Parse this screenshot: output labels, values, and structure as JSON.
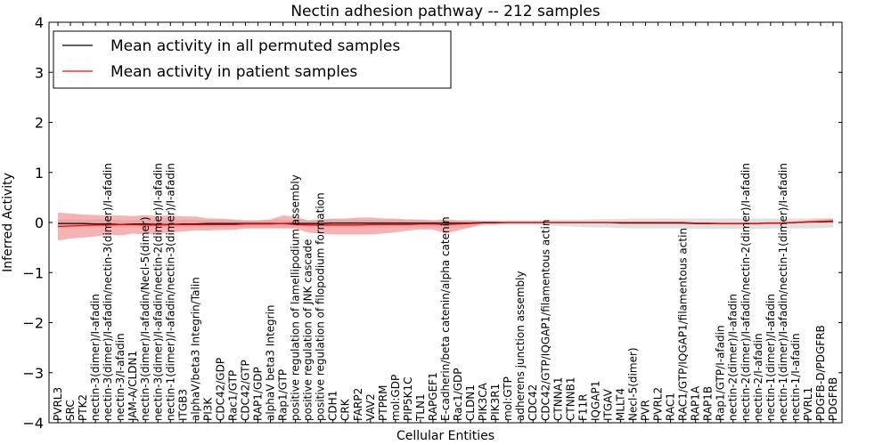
{
  "chart_data": {
    "type": "line",
    "title": "Nectin adhesion pathway -- 212 samples",
    "xlabel": "Cellular Entities",
    "ylabel": "Inferred Activity",
    "ylim": [
      -4,
      4
    ],
    "yticks": [
      "−4",
      "−3",
      "−2",
      "−1",
      "0",
      "1",
      "2",
      "3",
      "4"
    ],
    "grid": false,
    "legend_position": "top-left",
    "categories": [
      "PVRL3",
      "SRC",
      "PTK2",
      "nectin-3(dimer)/I-afadin",
      "nectin-3(dimer)/I-afadin/nectin-3(dimer)/I-afadin",
      "nectin-3/I-afadin",
      "JAM-A/CLDN1",
      "nectin-3(dimer)/I-afadin/Necl-5(dimer)",
      "nectin-3(dimer)/I-afadin/nectin-2(dimer)/I-afadin",
      "nectin-1(dimer)/I-afadin/nectin-3(dimer)/I-afadin",
      "ITGB3",
      "alphaV/beta3 Integrin/Talin",
      "PI3K",
      "CDC42/GDP",
      "Rac1/GTP",
      "CDC42/GTP",
      "RAP1/GDP",
      "alphaV beta3 Integrin",
      "Rap1/GTP",
      "positive regulation of lamellipodium assembly",
      "positive regulation of JNK cascade",
      "positive regulation of filopodium formation",
      "CDH1",
      "CRK",
      "FARP2",
      "VAV2",
      "PTPRM",
      "mol:GDP",
      "PIP5K1C",
      "TLN1",
      "RAPGEF1",
      "E-cadherin/beta catenin/alpha catenin",
      "Rac1/GDP",
      "CLDN1",
      "PIK3CA",
      "PIK3R1",
      "mol:GTP",
      "adherens junction assembly",
      "CDC42",
      "CDC42/GTP/IQGAP1/filamentous actin",
      "CTNNA1",
      "CTNNB1",
      "F11R",
      "IQGAP1",
      "ITGAV",
      "MLLT4",
      "Necl-5(dimer)",
      "PVR",
      "PVRL2",
      "RAC1",
      "RAC1/GTP/IQGAP1/filamentous actin",
      "RAP1A",
      "RAP1B",
      "Rap1/GTP/I-afadin",
      "nectin-2(dimer)/I-afadin",
      "nectin-2(dimer)/I-afadin/nectin-2(dimer)/I-afadin",
      "nectin-2/I-afadin",
      "nectin-1(dimer)/I-afadin",
      "nectin-1(dimer)/I-afadin/nectin-1(dimer)/I-afadin",
      "nectin-1/I-afadin",
      "PVRL1",
      "PDGFB-D/PDGFRB",
      "PDGFRB"
    ],
    "series": [
      {
        "name": "Mean activity in all permuted samples",
        "color": "#000000",
        "values": [
          -0.02,
          -0.02,
          -0.02,
          -0.03,
          -0.03,
          -0.04,
          -0.03,
          -0.03,
          -0.04,
          -0.04,
          -0.03,
          -0.03,
          -0.02,
          -0.02,
          -0.02,
          -0.02,
          -0.02,
          -0.02,
          -0.02,
          -0.02,
          -0.02,
          -0.02,
          -0.01,
          -0.01,
          -0.01,
          -0.01,
          -0.01,
          -0.01,
          -0.01,
          -0.01,
          -0.01,
          -0.01,
          -0.01,
          -0.01,
          0.0,
          0.0,
          0.0,
          0.0,
          0.0,
          0.0,
          0.0,
          0.0,
          0.0,
          0.0,
          0.0,
          -0.01,
          -0.01,
          -0.01,
          -0.01,
          -0.01,
          -0.01,
          -0.02,
          -0.02,
          -0.02,
          -0.02,
          -0.02,
          -0.02,
          -0.01,
          -0.01,
          0.0,
          0.01,
          0.01,
          0.02
        ]
      },
      {
        "name": "Mean activity in patient samples",
        "color": "#ff0000",
        "values": [
          -0.08,
          -0.07,
          -0.06,
          -0.05,
          -0.05,
          -0.04,
          -0.04,
          -0.05,
          -0.05,
          -0.04,
          -0.04,
          -0.04,
          -0.04,
          -0.04,
          -0.04,
          -0.03,
          -0.03,
          -0.03,
          -0.02,
          -0.04,
          -0.05,
          -0.05,
          -0.05,
          -0.05,
          -0.05,
          -0.04,
          -0.04,
          -0.04,
          -0.04,
          -0.03,
          -0.03,
          -0.04,
          -0.03,
          -0.02,
          -0.01,
          -0.01,
          0.0,
          0.0,
          0.0,
          0.0,
          0.0,
          0.0,
          0.0,
          0.0,
          0.0,
          0.0,
          0.0,
          0.0,
          0.0,
          0.0,
          0.0,
          -0.01,
          -0.01,
          -0.02,
          -0.02,
          -0.02,
          -0.02,
          -0.01,
          -0.01,
          0.0,
          0.01,
          0.02,
          0.03
        ]
      }
    ],
    "bands": [
      {
        "name": "permuted samples spread",
        "color": "#bbbbbb",
        "lower": [
          -0.1,
          -0.1,
          -0.1,
          -0.1,
          -0.1,
          -0.1,
          -0.1,
          -0.1,
          -0.1,
          -0.1,
          -0.1,
          -0.1,
          -0.1,
          -0.1,
          -0.1,
          -0.1,
          -0.1,
          -0.1,
          -0.1,
          -0.1,
          -0.1,
          -0.1,
          -0.1,
          -0.1,
          -0.1,
          -0.1,
          -0.1,
          -0.1,
          -0.1,
          -0.1,
          -0.1,
          -0.1,
          -0.1,
          -0.1,
          -0.06,
          -0.05,
          -0.05,
          -0.05,
          -0.05,
          -0.06,
          -0.07,
          -0.08,
          -0.09,
          -0.1,
          -0.1,
          -0.11,
          -0.12,
          -0.12,
          -0.12,
          -0.12,
          -0.12,
          -0.13,
          -0.13,
          -0.13,
          -0.13,
          -0.13,
          -0.13,
          -0.12,
          -0.12,
          -0.12,
          -0.12,
          -0.11,
          -0.1
        ],
        "upper": [
          0.06,
          0.06,
          0.06,
          0.06,
          0.06,
          0.05,
          0.05,
          0.05,
          0.05,
          0.05,
          0.05,
          0.05,
          0.05,
          0.05,
          0.05,
          0.05,
          0.05,
          0.05,
          0.05,
          0.05,
          0.05,
          0.05,
          0.05,
          0.05,
          0.05,
          0.05,
          0.05,
          0.05,
          0.05,
          0.05,
          0.05,
          0.05,
          0.05,
          0.05,
          0.05,
          0.05,
          0.05,
          0.05,
          0.05,
          0.05,
          0.06,
          0.06,
          0.06,
          0.07,
          0.07,
          0.07,
          0.08,
          0.08,
          0.08,
          0.08,
          0.08,
          0.08,
          0.08,
          0.08,
          0.08,
          0.08,
          0.08,
          0.08,
          0.08,
          0.08,
          0.08,
          0.09,
          0.09
        ]
      },
      {
        "name": "patient samples spread",
        "color": "#f08080",
        "lower": [
          -0.36,
          -0.32,
          -0.3,
          -0.28,
          -0.24,
          -0.26,
          -0.22,
          -0.24,
          -0.22,
          -0.2,
          -0.18,
          -0.16,
          -0.16,
          -0.15,
          -0.15,
          -0.12,
          -0.12,
          -0.12,
          -0.12,
          -0.12,
          -0.2,
          -0.22,
          -0.24,
          -0.24,
          -0.24,
          -0.24,
          -0.22,
          -0.2,
          -0.16,
          -0.14,
          -0.14,
          -0.22,
          -0.16,
          -0.1,
          -0.02,
          -0.02,
          -0.01,
          -0.01,
          -0.01,
          -0.01,
          -0.01,
          -0.01,
          -0.01,
          -0.01,
          -0.01,
          -0.01,
          -0.01,
          -0.01,
          -0.01,
          -0.02,
          -0.02,
          -0.03,
          -0.03,
          -0.04,
          -0.04,
          -0.04,
          -0.04,
          -0.03,
          -0.03,
          -0.02,
          -0.01,
          0.0,
          0.0
        ],
        "upper": [
          0.2,
          0.18,
          0.16,
          0.15,
          0.14,
          0.14,
          0.13,
          0.15,
          0.13,
          0.14,
          0.12,
          0.12,
          0.08,
          0.08,
          0.06,
          0.04,
          0.04,
          0.06,
          0.14,
          0.12,
          0.04,
          0.06,
          0.08,
          0.08,
          0.1,
          0.1,
          0.08,
          0.08,
          0.06,
          0.06,
          0.04,
          0.06,
          0.04,
          0.04,
          0.01,
          0.01,
          0.01,
          0.01,
          0.01,
          0.01,
          0.01,
          0.01,
          0.01,
          0.01,
          0.01,
          0.01,
          0.01,
          0.01,
          0.01,
          0.0,
          0.0,
          0.0,
          0.0,
          0.0,
          0.0,
          0.0,
          0.0,
          0.01,
          0.01,
          0.02,
          0.04,
          0.06,
          0.07
        ]
      }
    ]
  }
}
